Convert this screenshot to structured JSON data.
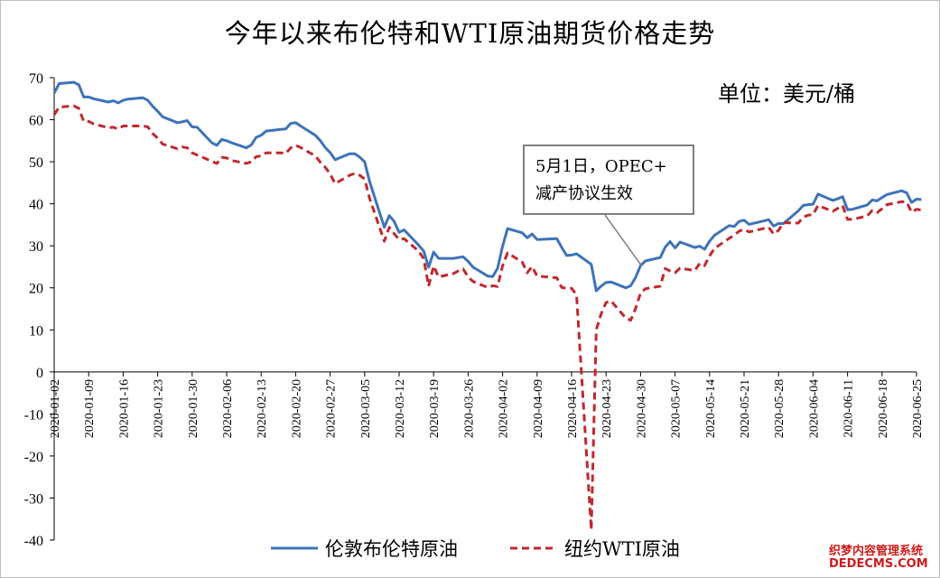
{
  "chart_data": {
    "type": "line",
    "title": "今年以来布伦特和WTI原油期货价格走势",
    "unit": "单位：美元/桶",
    "ylim": [
      -40,
      70
    ],
    "yticks": [
      70,
      60,
      50,
      40,
      30,
      20,
      10,
      0,
      -10,
      -20,
      -30,
      -40
    ],
    "xticks": [
      "2020-01-02",
      "2020-01-09",
      "2020-01-16",
      "2020-01-23",
      "2020-01-30",
      "2020-02-06",
      "2020-02-13",
      "2020-02-20",
      "2020-02-27",
      "2020-03-05",
      "2020-03-12",
      "2020-03-19",
      "2020-03-26",
      "2020-04-02",
      "2020-04-09",
      "2020-04-16",
      "2020-04-23",
      "2020-04-30",
      "2020-05-07",
      "2020-05-14",
      "2020-05-21",
      "2020-05-28",
      "2020-06-04",
      "2020-06-11",
      "2020-06-18",
      "2020-06-25"
    ],
    "grid": false,
    "legend_position": "bottom",
    "annotation": {
      "line1": "5月1日，OPEC+",
      "line2": "减产协议生效",
      "target_x": "2020-05-01",
      "target_y": 26
    },
    "series": [
      {
        "name": "伦敦布伦特原油",
        "color": "#3e73b8",
        "style": "solid",
        "points": [
          [
            "2020-01-02",
            66.3
          ],
          [
            "2020-01-03",
            68.6
          ],
          [
            "2020-01-06",
            68.9
          ],
          [
            "2020-01-07",
            68.3
          ],
          [
            "2020-01-08",
            65.4
          ],
          [
            "2020-01-09",
            65.4
          ],
          [
            "2020-01-10",
            65.0
          ],
          [
            "2020-01-13",
            64.2
          ],
          [
            "2020-01-14",
            64.5
          ],
          [
            "2020-01-15",
            64.0
          ],
          [
            "2020-01-16",
            64.6
          ],
          [
            "2020-01-17",
            64.9
          ],
          [
            "2020-01-20",
            65.2
          ],
          [
            "2020-01-21",
            64.6
          ],
          [
            "2020-01-22",
            63.2
          ],
          [
            "2020-01-23",
            62.0
          ],
          [
            "2020-01-24",
            60.7
          ],
          [
            "2020-01-27",
            59.3
          ],
          [
            "2020-01-28",
            59.5
          ],
          [
            "2020-01-29",
            59.8
          ],
          [
            "2020-01-30",
            58.3
          ],
          [
            "2020-01-31",
            58.2
          ],
          [
            "2020-02-03",
            54.5
          ],
          [
            "2020-02-04",
            53.9
          ],
          [
            "2020-02-05",
            55.3
          ],
          [
            "2020-02-06",
            55.0
          ],
          [
            "2020-02-07",
            54.5
          ],
          [
            "2020-02-10",
            53.3
          ],
          [
            "2020-02-11",
            54.0
          ],
          [
            "2020-02-12",
            55.8
          ],
          [
            "2020-02-13",
            56.3
          ],
          [
            "2020-02-14",
            57.3
          ],
          [
            "2020-02-17",
            57.7
          ],
          [
            "2020-02-18",
            57.8
          ],
          [
            "2020-02-19",
            59.1
          ],
          [
            "2020-02-20",
            59.3
          ],
          [
            "2020-02-21",
            58.5
          ],
          [
            "2020-02-24",
            56.3
          ],
          [
            "2020-02-25",
            55.0
          ],
          [
            "2020-02-26",
            53.4
          ],
          [
            "2020-02-27",
            52.2
          ],
          [
            "2020-02-28",
            50.5
          ],
          [
            "2020-03-02",
            51.9
          ],
          [
            "2020-03-03",
            51.9
          ],
          [
            "2020-03-04",
            51.1
          ],
          [
            "2020-03-05",
            50.0
          ],
          [
            "2020-03-06",
            45.3
          ],
          [
            "2020-03-09",
            34.4
          ],
          [
            "2020-03-10",
            37.2
          ],
          [
            "2020-03-11",
            35.8
          ],
          [
            "2020-03-12",
            33.2
          ],
          [
            "2020-03-13",
            33.8
          ],
          [
            "2020-03-16",
            30.1
          ],
          [
            "2020-03-17",
            28.7
          ],
          [
            "2020-03-18",
            24.9
          ],
          [
            "2020-03-19",
            28.5
          ],
          [
            "2020-03-20",
            27.0
          ],
          [
            "2020-03-23",
            27.0
          ],
          [
            "2020-03-24",
            27.2
          ],
          [
            "2020-03-25",
            27.4
          ],
          [
            "2020-03-26",
            26.3
          ],
          [
            "2020-03-27",
            24.9
          ],
          [
            "2020-03-30",
            22.8
          ],
          [
            "2020-03-31",
            22.7
          ],
          [
            "2020-04-01",
            24.7
          ],
          [
            "2020-04-02",
            29.9
          ],
          [
            "2020-04-03",
            34.1
          ],
          [
            "2020-04-06",
            33.1
          ],
          [
            "2020-04-07",
            31.9
          ],
          [
            "2020-04-08",
            32.8
          ],
          [
            "2020-04-09",
            31.5
          ],
          [
            "2020-04-13",
            31.7
          ],
          [
            "2020-04-14",
            29.6
          ],
          [
            "2020-04-15",
            27.7
          ],
          [
            "2020-04-16",
            27.8
          ],
          [
            "2020-04-17",
            28.1
          ],
          [
            "2020-04-20",
            25.6
          ],
          [
            "2020-04-21",
            19.3
          ],
          [
            "2020-04-22",
            20.4
          ],
          [
            "2020-04-23",
            21.3
          ],
          [
            "2020-04-24",
            21.4
          ],
          [
            "2020-04-27",
            20.0
          ],
          [
            "2020-04-28",
            20.5
          ],
          [
            "2020-04-29",
            22.5
          ],
          [
            "2020-04-30",
            25.3
          ],
          [
            "2020-05-01",
            26.4
          ],
          [
            "2020-05-04",
            27.2
          ],
          [
            "2020-05-05",
            29.7
          ],
          [
            "2020-05-06",
            31.0
          ],
          [
            "2020-05-07",
            29.5
          ],
          [
            "2020-05-08",
            30.9
          ],
          [
            "2020-05-11",
            29.6
          ],
          [
            "2020-05-12",
            29.9
          ],
          [
            "2020-05-13",
            29.2
          ],
          [
            "2020-05-14",
            31.1
          ],
          [
            "2020-05-15",
            32.5
          ],
          [
            "2020-05-18",
            34.8
          ],
          [
            "2020-05-19",
            34.6
          ],
          [
            "2020-05-20",
            35.8
          ],
          [
            "2020-05-21",
            36.1
          ],
          [
            "2020-05-22",
            35.1
          ],
          [
            "2020-05-26",
            36.2
          ],
          [
            "2020-05-27",
            34.7
          ],
          [
            "2020-05-28",
            35.3
          ],
          [
            "2020-05-29",
            35.3
          ],
          [
            "2020-06-01",
            38.3
          ],
          [
            "2020-06-02",
            39.6
          ],
          [
            "2020-06-03",
            39.8
          ],
          [
            "2020-06-04",
            39.9
          ],
          [
            "2020-06-05",
            42.3
          ],
          [
            "2020-06-08",
            40.8
          ],
          [
            "2020-06-09",
            41.2
          ],
          [
            "2020-06-10",
            41.7
          ],
          [
            "2020-06-11",
            38.6
          ],
          [
            "2020-06-12",
            38.7
          ],
          [
            "2020-06-15",
            39.7
          ],
          [
            "2020-06-16",
            40.9
          ],
          [
            "2020-06-17",
            40.7
          ],
          [
            "2020-06-18",
            41.5
          ],
          [
            "2020-06-19",
            42.2
          ],
          [
            "2020-06-22",
            43.1
          ],
          [
            "2020-06-23",
            42.6
          ],
          [
            "2020-06-24",
            40.3
          ],
          [
            "2020-06-25",
            41.1
          ],
          [
            "2020-06-26",
            41.0
          ]
        ]
      },
      {
        "name": "纽约WTI原油",
        "color": "#c0282e",
        "style": "dashed",
        "points": [
          [
            "2020-01-02",
            61.2
          ],
          [
            "2020-01-03",
            63.0
          ],
          [
            "2020-01-06",
            63.3
          ],
          [
            "2020-01-07",
            62.7
          ],
          [
            "2020-01-08",
            59.6
          ],
          [
            "2020-01-09",
            59.6
          ],
          [
            "2020-01-10",
            59.0
          ],
          [
            "2020-01-13",
            58.1
          ],
          [
            "2020-01-14",
            58.2
          ],
          [
            "2020-01-15",
            57.8
          ],
          [
            "2020-01-16",
            58.5
          ],
          [
            "2020-01-17",
            58.5
          ],
          [
            "2020-01-20",
            58.5
          ],
          [
            "2020-01-21",
            58.3
          ],
          [
            "2020-01-22",
            56.7
          ],
          [
            "2020-01-23",
            55.6
          ],
          [
            "2020-01-24",
            54.2
          ],
          [
            "2020-01-27",
            53.1
          ],
          [
            "2020-01-28",
            53.5
          ],
          [
            "2020-01-29",
            53.3
          ],
          [
            "2020-01-30",
            52.1
          ],
          [
            "2020-01-31",
            51.6
          ],
          [
            "2020-02-03",
            50.1
          ],
          [
            "2020-02-04",
            49.6
          ],
          [
            "2020-02-05",
            51.0
          ],
          [
            "2020-02-06",
            50.9
          ],
          [
            "2020-02-07",
            50.3
          ],
          [
            "2020-02-10",
            49.6
          ],
          [
            "2020-02-11",
            50.0
          ],
          [
            "2020-02-12",
            51.2
          ],
          [
            "2020-02-13",
            51.4
          ],
          [
            "2020-02-14",
            52.1
          ],
          [
            "2020-02-17",
            52.1
          ],
          [
            "2020-02-18",
            52.0
          ],
          [
            "2020-02-19",
            53.3
          ],
          [
            "2020-02-20",
            53.9
          ],
          [
            "2020-02-21",
            53.4
          ],
          [
            "2020-02-24",
            51.4
          ],
          [
            "2020-02-25",
            49.9
          ],
          [
            "2020-02-26",
            48.7
          ],
          [
            "2020-02-27",
            47.1
          ],
          [
            "2020-02-28",
            44.8
          ],
          [
            "2020-03-02",
            46.8
          ],
          [
            "2020-03-03",
            47.2
          ],
          [
            "2020-03-04",
            46.8
          ],
          [
            "2020-03-05",
            45.9
          ],
          [
            "2020-03-06",
            41.3
          ],
          [
            "2020-03-09",
            31.1
          ],
          [
            "2020-03-10",
            34.4
          ],
          [
            "2020-03-11",
            32.9
          ],
          [
            "2020-03-12",
            31.5
          ],
          [
            "2020-03-13",
            31.7
          ],
          [
            "2020-03-16",
            28.7
          ],
          [
            "2020-03-17",
            26.9
          ],
          [
            "2020-03-18",
            20.4
          ],
          [
            "2020-03-19",
            25.2
          ],
          [
            "2020-03-20",
            22.6
          ],
          [
            "2020-03-23",
            23.4
          ],
          [
            "2020-03-24",
            24.0
          ],
          [
            "2020-03-25",
            24.5
          ],
          [
            "2020-03-26",
            22.6
          ],
          [
            "2020-03-27",
            21.5
          ],
          [
            "2020-03-30",
            20.1
          ],
          [
            "2020-03-31",
            20.5
          ],
          [
            "2020-04-01",
            20.3
          ],
          [
            "2020-04-02",
            25.3
          ],
          [
            "2020-04-03",
            28.3
          ],
          [
            "2020-04-06",
            26.1
          ],
          [
            "2020-04-07",
            23.6
          ],
          [
            "2020-04-08",
            25.1
          ],
          [
            "2020-04-09",
            22.8
          ],
          [
            "2020-04-13",
            22.4
          ],
          [
            "2020-04-14",
            20.1
          ],
          [
            "2020-04-15",
            19.9
          ],
          [
            "2020-04-16",
            19.9
          ],
          [
            "2020-04-17",
            18.3
          ],
          [
            "2020-04-20",
            -37.6
          ],
          [
            "2020-04-21",
            10.0
          ],
          [
            "2020-04-22",
            13.8
          ],
          [
            "2020-04-23",
            16.5
          ],
          [
            "2020-04-24",
            16.9
          ],
          [
            "2020-04-27",
            12.8
          ],
          [
            "2020-04-28",
            12.3
          ],
          [
            "2020-04-29",
            15.1
          ],
          [
            "2020-04-30",
            18.8
          ],
          [
            "2020-05-01",
            19.8
          ],
          [
            "2020-05-04",
            20.4
          ],
          [
            "2020-05-05",
            24.6
          ],
          [
            "2020-05-06",
            24.0
          ],
          [
            "2020-05-07",
            23.6
          ],
          [
            "2020-05-08",
            24.7
          ],
          [
            "2020-05-11",
            24.1
          ],
          [
            "2020-05-12",
            25.8
          ],
          [
            "2020-05-13",
            25.3
          ],
          [
            "2020-05-14",
            27.6
          ],
          [
            "2020-05-15",
            29.4
          ],
          [
            "2020-05-18",
            31.8
          ],
          [
            "2020-05-19",
            32.5
          ],
          [
            "2020-05-20",
            33.5
          ],
          [
            "2020-05-21",
            33.9
          ],
          [
            "2020-05-22",
            33.3
          ],
          [
            "2020-05-26",
            34.4
          ],
          [
            "2020-05-27",
            32.8
          ],
          [
            "2020-05-28",
            33.7
          ],
          [
            "2020-05-29",
            35.5
          ],
          [
            "2020-06-01",
            35.4
          ],
          [
            "2020-06-02",
            36.8
          ],
          [
            "2020-06-03",
            37.3
          ],
          [
            "2020-06-04",
            37.4
          ],
          [
            "2020-06-05",
            39.6
          ],
          [
            "2020-06-08",
            38.2
          ],
          [
            "2020-06-09",
            38.9
          ],
          [
            "2020-06-10",
            39.6
          ],
          [
            "2020-06-11",
            36.3
          ],
          [
            "2020-06-12",
            36.3
          ],
          [
            "2020-06-15",
            37.1
          ],
          [
            "2020-06-16",
            38.4
          ],
          [
            "2020-06-17",
            37.9
          ],
          [
            "2020-06-18",
            38.8
          ],
          [
            "2020-06-19",
            39.8
          ],
          [
            "2020-06-22",
            40.5
          ],
          [
            "2020-06-23",
            40.4
          ],
          [
            "2020-06-24",
            38.0
          ],
          [
            "2020-06-25",
            38.7
          ],
          [
            "2020-06-26",
            38.5
          ]
        ]
      }
    ]
  },
  "watermark": {
    "line1": "织梦内容管理系统",
    "line2": "DEDECMS.COM"
  }
}
